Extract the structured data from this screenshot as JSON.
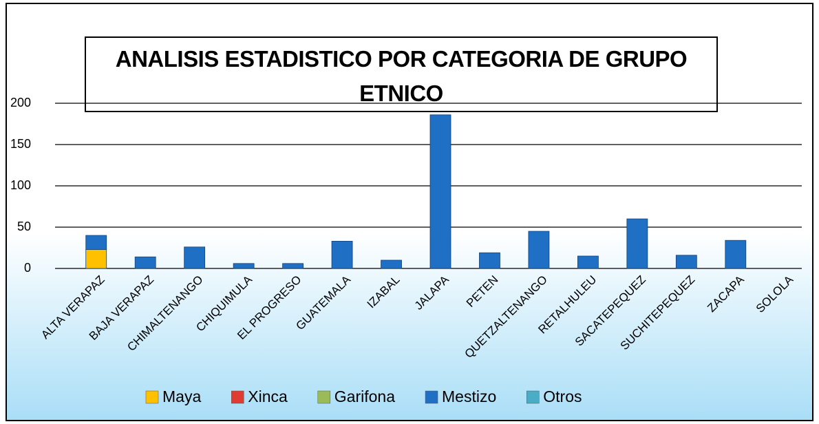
{
  "chart_data": {
    "type": "stacked_bar",
    "title": "ANALISIS ESTADISTICO POR CATEGORIA DE GRUPO ETNICO",
    "categories": [
      "ALTA VERAPAZ",
      "BAJA VERAPAZ",
      "CHIMALTENANGO",
      "CHIQUIMULA",
      "EL PROGRESO",
      "GUATEMALA",
      "IZABAL",
      "JALAPA",
      "PETEN",
      "QUETZALTENANGO",
      "RETALHULEU",
      "SACATEPEQUEZ",
      "SUCHITEPEQUEZ",
      "ZACAPA",
      "SOLOLA"
    ],
    "series": [
      {
        "name": "Maya",
        "color": "#ffc000",
        "values": [
          23,
          0,
          0,
          0,
          0,
          0,
          0,
          0,
          0,
          0,
          0,
          0,
          0,
          0,
          0
        ]
      },
      {
        "name": "Xinca",
        "color": "#e03c31",
        "values": [
          0,
          0,
          0,
          0,
          0,
          0,
          0,
          0,
          0,
          0,
          0,
          0,
          0,
          0,
          0
        ]
      },
      {
        "name": "Garifona",
        "color": "#9bbb59",
        "values": [
          0,
          0,
          0,
          0,
          0,
          0,
          0,
          0,
          0,
          0,
          0,
          0,
          0,
          0,
          0
        ]
      },
      {
        "name": "Mestizo",
        "color": "#1f6fc5",
        "values": [
          17,
          14,
          26,
          6,
          6,
          33,
          10,
          186,
          19,
          45,
          15,
          60,
          16,
          34,
          0
        ]
      },
      {
        "name": "Otros",
        "color": "#4bacc6",
        "values": [
          0,
          0,
          0,
          0,
          0,
          0,
          0,
          0,
          0,
          0,
          0,
          0,
          0,
          0,
          0
        ]
      }
    ],
    "ylim": [
      0,
      200
    ],
    "yticks": [
      0,
      50,
      100,
      150,
      200
    ],
    "grid": true,
    "legend": "bottom"
  }
}
